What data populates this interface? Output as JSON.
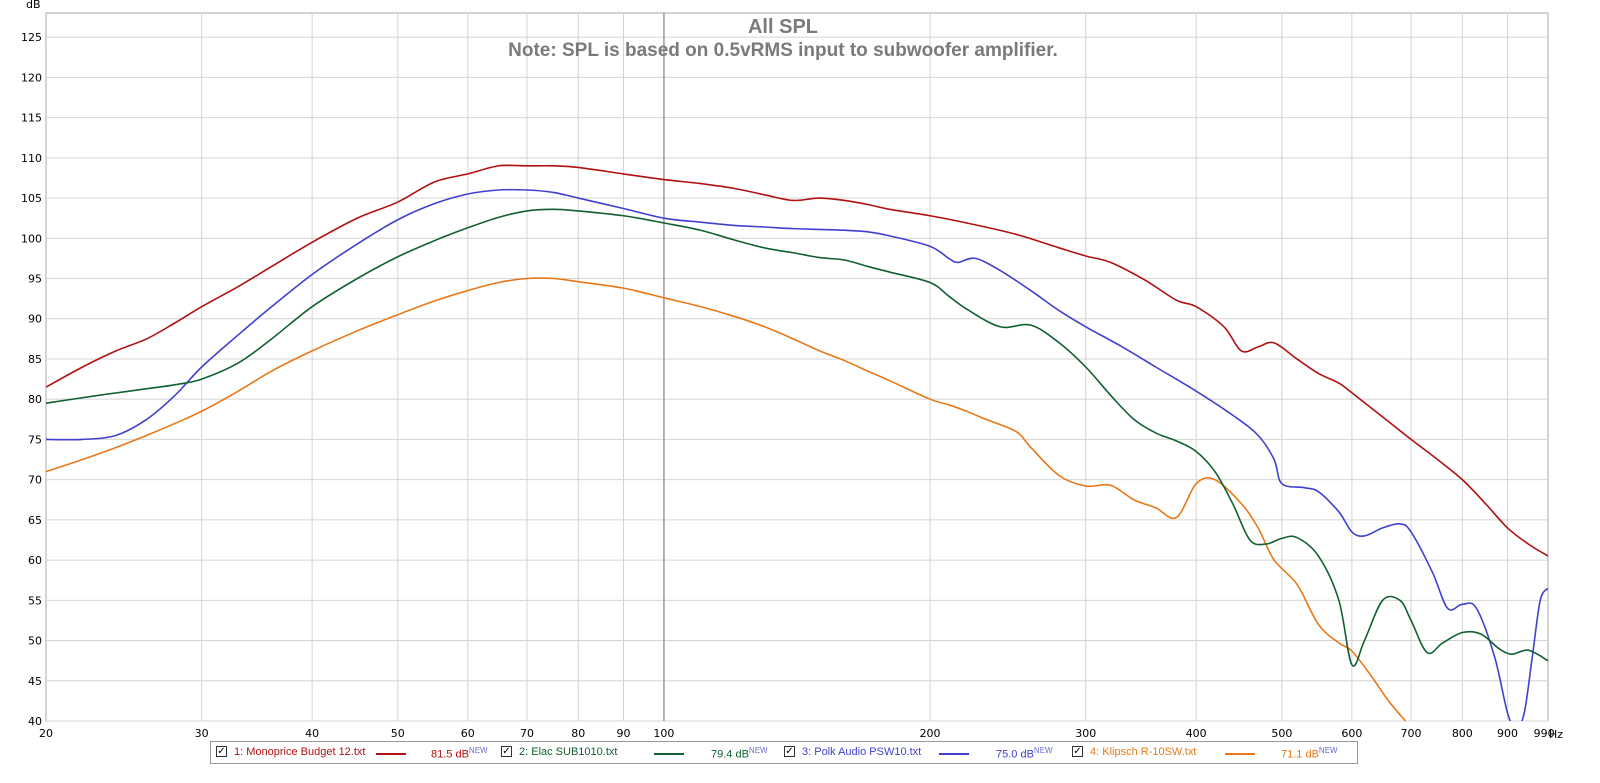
{
  "chart_data": {
    "type": "line",
    "title": "All SPL",
    "subtitle": "Note: SPL is based on 0.5vRMS input to subwoofer amplifier.",
    "ylabel": "dB",
    "xunit": "Hz",
    "xscale": "log",
    "xlim": [
      20,
      1000
    ],
    "ylim": [
      40,
      128
    ],
    "grid": true,
    "legend_position": "bottom",
    "xticks": [
      {
        "value": 20,
        "label": "20"
      },
      {
        "value": 30,
        "label": "30"
      },
      {
        "value": 40,
        "label": "40"
      },
      {
        "value": 50,
        "label": "50"
      },
      {
        "value": 60,
        "label": "60"
      },
      {
        "value": 70,
        "label": "70"
      },
      {
        "value": 80,
        "label": "80"
      },
      {
        "value": 90,
        "label": "90"
      },
      {
        "value": 100,
        "label": "100"
      },
      {
        "value": 200,
        "label": "200"
      },
      {
        "value": 300,
        "label": "300"
      },
      {
        "value": 400,
        "label": "400"
      },
      {
        "value": 500,
        "label": "500"
      },
      {
        "value": 600,
        "label": "600"
      },
      {
        "value": 700,
        "label": "700"
      },
      {
        "value": 800,
        "label": "800"
      },
      {
        "value": 900,
        "label": "900"
      },
      {
        "value": 990,
        "label": "990"
      }
    ],
    "yticks": [
      40,
      45,
      50,
      55,
      60,
      65,
      70,
      75,
      80,
      85,
      90,
      95,
      100,
      105,
      110,
      115,
      120,
      125
    ],
    "series": [
      {
        "name": "1: Monoprice Budget 12.txt",
        "color": "#b01010",
        "legend_value": "81.5 dB",
        "legend_badge": "NEW",
        "checked": true,
        "points": [
          [
            20,
            81.5
          ],
          [
            22,
            84
          ],
          [
            24,
            86
          ],
          [
            26,
            87.5
          ],
          [
            28,
            89.5
          ],
          [
            30,
            91.5
          ],
          [
            33,
            94
          ],
          [
            36,
            96.5
          ],
          [
            40,
            99.5
          ],
          [
            45,
            102.5
          ],
          [
            50,
            104.5
          ],
          [
            55,
            107
          ],
          [
            60,
            108
          ],
          [
            65,
            109
          ],
          [
            70,
            109
          ],
          [
            75,
            109
          ],
          [
            80,
            108.8
          ],
          [
            90,
            108
          ],
          [
            100,
            107.3
          ],
          [
            110,
            106.8
          ],
          [
            120,
            106.2
          ],
          [
            130,
            105.4
          ],
          [
            140,
            104.7
          ],
          [
            150,
            105
          ],
          [
            160,
            104.7
          ],
          [
            170,
            104.2
          ],
          [
            180,
            103.6
          ],
          [
            200,
            102.8
          ],
          [
            220,
            101.9
          ],
          [
            250,
            100.5
          ],
          [
            280,
            98.8
          ],
          [
            300,
            97.8
          ],
          [
            320,
            97
          ],
          [
            350,
            94.8
          ],
          [
            380,
            92.3
          ],
          [
            400,
            91.5
          ],
          [
            430,
            89
          ],
          [
            450,
            86
          ],
          [
            470,
            86.5
          ],
          [
            490,
            87
          ],
          [
            520,
            85
          ],
          [
            550,
            83.2
          ],
          [
            580,
            82
          ],
          [
            600,
            80.8
          ],
          [
            650,
            77.8
          ],
          [
            700,
            75
          ],
          [
            750,
            72.5
          ],
          [
            800,
            70
          ],
          [
            850,
            67
          ],
          [
            900,
            64
          ],
          [
            950,
            62
          ],
          [
            1000,
            60.5
          ]
        ]
      },
      {
        "name": "2: Elac SUB1010.txt",
        "color": "#106030",
        "legend_value": "79.4 dB",
        "legend_badge": "NEW",
        "checked": true,
        "points": [
          [
            20,
            79.5
          ],
          [
            23,
            80.5
          ],
          [
            26,
            81.3
          ],
          [
            28,
            81.8
          ],
          [
            30,
            82.5
          ],
          [
            33,
            84.5
          ],
          [
            36,
            87.5
          ],
          [
            40,
            91.5
          ],
          [
            45,
            95
          ],
          [
            50,
            97.7
          ],
          [
            55,
            99.7
          ],
          [
            60,
            101.3
          ],
          [
            65,
            102.6
          ],
          [
            70,
            103.4
          ],
          [
            75,
            103.6
          ],
          [
            80,
            103.4
          ],
          [
            90,
            102.8
          ],
          [
            100,
            101.9
          ],
          [
            110,
            101
          ],
          [
            120,
            99.8
          ],
          [
            130,
            98.8
          ],
          [
            140,
            98.2
          ],
          [
            150,
            97.6
          ],
          [
            160,
            97.3
          ],
          [
            170,
            96.5
          ],
          [
            180,
            95.8
          ],
          [
            200,
            94.5
          ],
          [
            210,
            92.8
          ],
          [
            220,
            91.2
          ],
          [
            240,
            89
          ],
          [
            260,
            89.2
          ],
          [
            280,
            87
          ],
          [
            300,
            84
          ],
          [
            320,
            80.5
          ],
          [
            340,
            77.5
          ],
          [
            360,
            75.8
          ],
          [
            380,
            74.8
          ],
          [
            400,
            73.5
          ],
          [
            420,
            71
          ],
          [
            440,
            67
          ],
          [
            460,
            62.5
          ],
          [
            480,
            62
          ],
          [
            500,
            62.7
          ],
          [
            520,
            62.8
          ],
          [
            550,
            60.5
          ],
          [
            580,
            55
          ],
          [
            600,
            47
          ],
          [
            620,
            50
          ],
          [
            650,
            55
          ],
          [
            680,
            55
          ],
          [
            700,
            52.5
          ],
          [
            730,
            48.5
          ],
          [
            760,
            49.7
          ],
          [
            800,
            51
          ],
          [
            840,
            50.8
          ],
          [
            880,
            49
          ],
          [
            910,
            48.3
          ],
          [
            950,
            48.8
          ],
          [
            1000,
            47.5
          ]
        ]
      },
      {
        "name": "3: Polk Audio PSW10.txt",
        "color": "#4040d0",
        "legend_value": "75.0 dB",
        "legend_badge": "NEW",
        "checked": true,
        "points": [
          [
            20,
            75
          ],
          [
            22,
            75
          ],
          [
            24,
            75.5
          ],
          [
            26,
            77.5
          ],
          [
            28,
            80.5
          ],
          [
            30,
            84
          ],
          [
            33,
            88
          ],
          [
            36,
            91.5
          ],
          [
            40,
            95.5
          ],
          [
            45,
            99.3
          ],
          [
            50,
            102.3
          ],
          [
            55,
            104.3
          ],
          [
            60,
            105.5
          ],
          [
            65,
            106
          ],
          [
            70,
            106
          ],
          [
            75,
            105.7
          ],
          [
            80,
            105
          ],
          [
            90,
            103.7
          ],
          [
            100,
            102.5
          ],
          [
            110,
            102
          ],
          [
            120,
            101.6
          ],
          [
            130,
            101.4
          ],
          [
            140,
            101.2
          ],
          [
            150,
            101.1
          ],
          [
            160,
            101
          ],
          [
            170,
            100.8
          ],
          [
            180,
            100.3
          ],
          [
            200,
            99
          ],
          [
            210,
            97.5
          ],
          [
            215,
            97
          ],
          [
            225,
            97.5
          ],
          [
            240,
            96
          ],
          [
            260,
            93.5
          ],
          [
            280,
            91
          ],
          [
            300,
            89
          ],
          [
            330,
            86.5
          ],
          [
            360,
            84
          ],
          [
            400,
            81
          ],
          [
            440,
            78
          ],
          [
            470,
            75.5
          ],
          [
            490,
            72.5
          ],
          [
            500,
            69.5
          ],
          [
            530,
            69
          ],
          [
            550,
            68.5
          ],
          [
            580,
            66
          ],
          [
            600,
            63.5
          ],
          [
            620,
            63
          ],
          [
            650,
            64
          ],
          [
            680,
            64.5
          ],
          [
            700,
            63.5
          ],
          [
            740,
            58.5
          ],
          [
            770,
            54
          ],
          [
            800,
            54.5
          ],
          [
            830,
            54
          ],
          [
            870,
            48
          ],
          [
            900,
            41
          ],
          [
            920,
            39
          ],
          [
            940,
            41
          ],
          [
            960,
            48
          ],
          [
            980,
            55
          ],
          [
            1000,
            56.5
          ]
        ]
      },
      {
        "name": "4: Klipsch R-10SW.txt",
        "color": "#e87818",
        "legend_value": "71.1 dB",
        "legend_badge": "NEW",
        "checked": true,
        "points": [
          [
            20,
            71
          ],
          [
            22,
            72.5
          ],
          [
            24,
            74
          ],
          [
            26,
            75.5
          ],
          [
            28,
            77
          ],
          [
            30,
            78.5
          ],
          [
            33,
            81
          ],
          [
            36,
            83.5
          ],
          [
            40,
            86
          ],
          [
            45,
            88.5
          ],
          [
            50,
            90.5
          ],
          [
            55,
            92.2
          ],
          [
            60,
            93.5
          ],
          [
            65,
            94.5
          ],
          [
            70,
            95
          ],
          [
            75,
            95
          ],
          [
            80,
            94.6
          ],
          [
            90,
            93.8
          ],
          [
            100,
            92.6
          ],
          [
            110,
            91.5
          ],
          [
            120,
            90.3
          ],
          [
            130,
            89
          ],
          [
            140,
            87.5
          ],
          [
            150,
            86
          ],
          [
            160,
            84.8
          ],
          [
            170,
            83.5
          ],
          [
            180,
            82.3
          ],
          [
            200,
            80
          ],
          [
            210,
            79.3
          ],
          [
            220,
            78.5
          ],
          [
            230,
            77.6
          ],
          [
            250,
            76
          ],
          [
            260,
            74
          ],
          [
            280,
            70.5
          ],
          [
            300,
            69.2
          ],
          [
            320,
            69.3
          ],
          [
            340,
            67.5
          ],
          [
            360,
            66.5
          ],
          [
            380,
            65.3
          ],
          [
            400,
            69.5
          ],
          [
            420,
            70
          ],
          [
            450,
            67
          ],
          [
            470,
            64
          ],
          [
            490,
            60
          ],
          [
            520,
            57
          ],
          [
            550,
            52
          ],
          [
            580,
            49.7
          ],
          [
            600,
            48.7
          ],
          [
            630,
            45.7
          ],
          [
            660,
            42.5
          ],
          [
            690,
            40
          ]
        ]
      }
    ]
  }
}
